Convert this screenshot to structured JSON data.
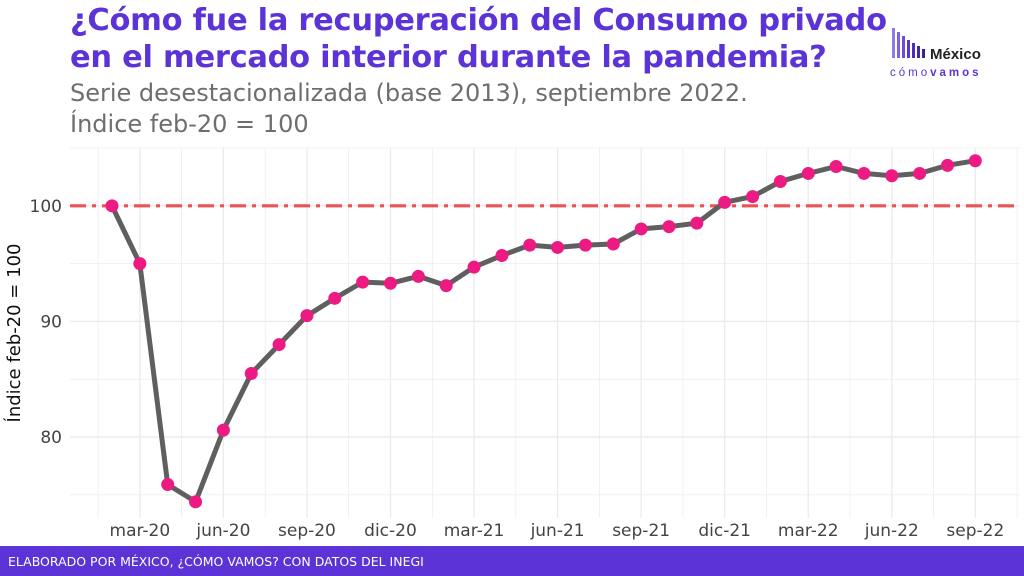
{
  "header": {
    "title_line1": "¿Cómo fue la recuperación del Consumo privado",
    "title_line2": "en el mercado interior durante la pandemia?",
    "subtitle_line1": "Serie desestacionalizada (base 2013), septiembre 2022.",
    "subtitle_line2": "Índice feb-20 = 100"
  },
  "logo": {
    "name": "México",
    "tag_light": "cómo",
    "tag_bold": "vamos"
  },
  "footer": {
    "source": "ELABORADO POR MÉXICO, ¿CÓMO VAMOS? CON DATOS DEL INEGI"
  },
  "colors": {
    "brand": "#5b33d6",
    "line": "#5f5f5f",
    "point": "#ee1a83",
    "reference": "#f05050",
    "grid": "#ebebeb"
  },
  "chart_data": {
    "type": "line",
    "title": "",
    "xlabel": "",
    "ylabel": "Índice feb-20 = 100",
    "ylim": [
      73,
      105
    ],
    "yticks": [
      80,
      90,
      100
    ],
    "reference_line": {
      "y": 100,
      "style": "dash-dot"
    },
    "x": [
      "feb-20",
      "mar-20",
      "abr-20",
      "may-20",
      "jun-20",
      "jul-20",
      "ago-20",
      "sep-20",
      "oct-20",
      "nov-20",
      "dic-20",
      "ene-21",
      "feb-21",
      "mar-21",
      "abr-21",
      "may-21",
      "jun-21",
      "jul-21",
      "ago-21",
      "sep-21",
      "oct-21",
      "nov-21",
      "dic-21",
      "ene-22",
      "feb-22",
      "mar-22",
      "abr-22",
      "may-22",
      "jun-22",
      "jul-22",
      "ago-22",
      "sep-22"
    ],
    "xtick_labels": [
      "mar-20",
      "jun-20",
      "sep-20",
      "dic-20",
      "mar-21",
      "jun-21",
      "sep-21",
      "dic-21",
      "mar-22",
      "jun-22",
      "sep-22"
    ],
    "series": [
      {
        "values": [
          100.0,
          95.0,
          75.9,
          74.4,
          80.6,
          85.5,
          88.0,
          90.5,
          92.0,
          93.4,
          93.3,
          93.9,
          93.1,
          94.7,
          95.7,
          96.6,
          96.4,
          96.6,
          96.7,
          98.0,
          98.2,
          98.5,
          100.3,
          100.8,
          102.1,
          102.8,
          103.4,
          102.8,
          102.6,
          102.8,
          103.5,
          103.9
        ]
      }
    ],
    "grid": true,
    "legend": "none"
  }
}
